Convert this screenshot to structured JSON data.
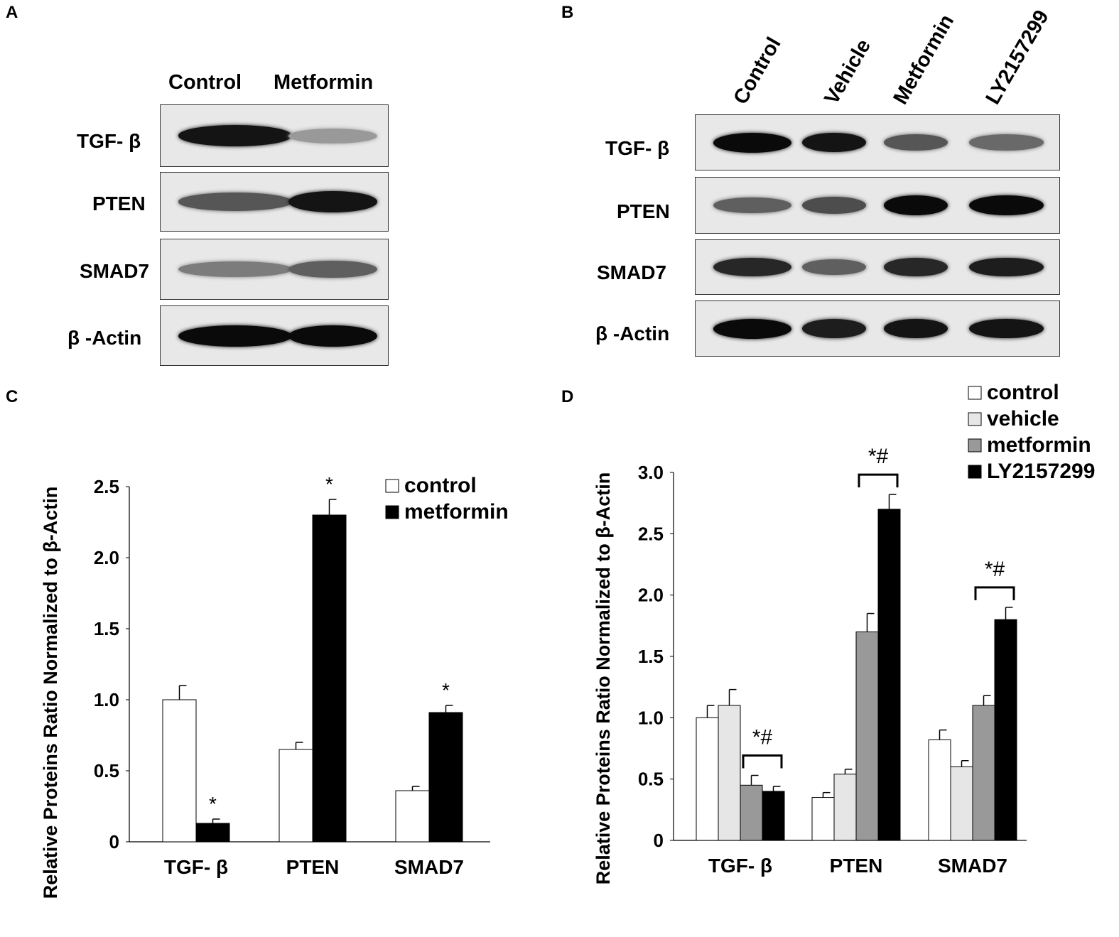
{
  "panels": {
    "a": "A",
    "b": "B",
    "c": "C",
    "d": "D"
  },
  "blot_a": {
    "lanes": [
      "Control",
      "Metformin"
    ],
    "rows": [
      {
        "label": "TGF- β",
        "intensities": [
          0.95,
          0.25
        ]
      },
      {
        "label": "PTEN",
        "intensities": [
          0.6,
          0.95
        ]
      },
      {
        "label": "SMAD7",
        "intensities": [
          0.4,
          0.55
        ]
      },
      {
        "label": "β -Actin",
        "intensities": [
          1.0,
          1.0
        ]
      }
    ]
  },
  "blot_b": {
    "lanes": [
      "Control",
      "Vehicle",
      "Metformin",
      "LY2157299"
    ],
    "rows": [
      {
        "label": "TGF- β",
        "intensities": [
          1.0,
          0.95,
          0.6,
          0.5
        ]
      },
      {
        "label": "PTEN",
        "intensities": [
          0.55,
          0.65,
          1.0,
          1.0
        ]
      },
      {
        "label": "SMAD7",
        "intensities": [
          0.85,
          0.55,
          0.85,
          0.9
        ]
      },
      {
        "label": "β -Actin",
        "intensities": [
          1.0,
          0.9,
          0.95,
          0.95
        ]
      }
    ]
  },
  "chart_data": [
    {
      "type": "bar",
      "panel": "C",
      "categories": [
        "TGF- β",
        "PTEN",
        "SMAD7"
      ],
      "series": [
        {
          "name": "control",
          "values": [
            1.0,
            0.65,
            0.36
          ],
          "errors": [
            0.1,
            0.05,
            0.03
          ],
          "fill": "#ffffff",
          "sig": [
            "",
            "",
            ""
          ]
        },
        {
          "name": "metformin",
          "values": [
            0.13,
            2.3,
            0.91
          ],
          "errors": [
            0.03,
            0.11,
            0.05
          ],
          "fill": "#000000",
          "sig": [
            "*",
            "*",
            "*"
          ]
        }
      ],
      "ylabel": "Relative Proteins Ratio Normalized to β-Actin",
      "ylim": [
        0,
        2.5
      ],
      "yticks": [
        "0",
        "0.5",
        "1.0",
        "1.5",
        "2.0",
        "2.5"
      ],
      "grid": false,
      "legend": "top-right"
    },
    {
      "type": "bar",
      "panel": "D",
      "categories": [
        "TGF- β",
        "PTEN",
        "SMAD7"
      ],
      "series": [
        {
          "name": "control",
          "values": [
            1.0,
            0.35,
            0.82
          ],
          "errors": [
            0.1,
            0.04,
            0.08
          ],
          "fill": "#ffffff"
        },
        {
          "name": "vehicle",
          "values": [
            1.1,
            0.54,
            0.6
          ],
          "errors": [
            0.13,
            0.04,
            0.05
          ],
          "fill": "#e6e6e6"
        },
        {
          "name": "metformin",
          "values": [
            0.45,
            1.7,
            1.1
          ],
          "errors": [
            0.08,
            0.15,
            0.08
          ],
          "fill": "#999999"
        },
        {
          "name": "LY2157299",
          "values": [
            0.4,
            2.7,
            1.8
          ],
          "errors": [
            0.04,
            0.12,
            0.1
          ],
          "fill": "#000000"
        }
      ],
      "annotations": [
        "*#",
        "*#",
        "*#"
      ],
      "ylabel": "Relative Proteins Ratio Normalized to β-Actin",
      "ylim": [
        0,
        3.0
      ],
      "yticks": [
        "0",
        "0.5",
        "1.0",
        "1.5",
        "2.0",
        "2.5",
        "3.0"
      ],
      "grid": false,
      "legend": "top-right"
    }
  ]
}
